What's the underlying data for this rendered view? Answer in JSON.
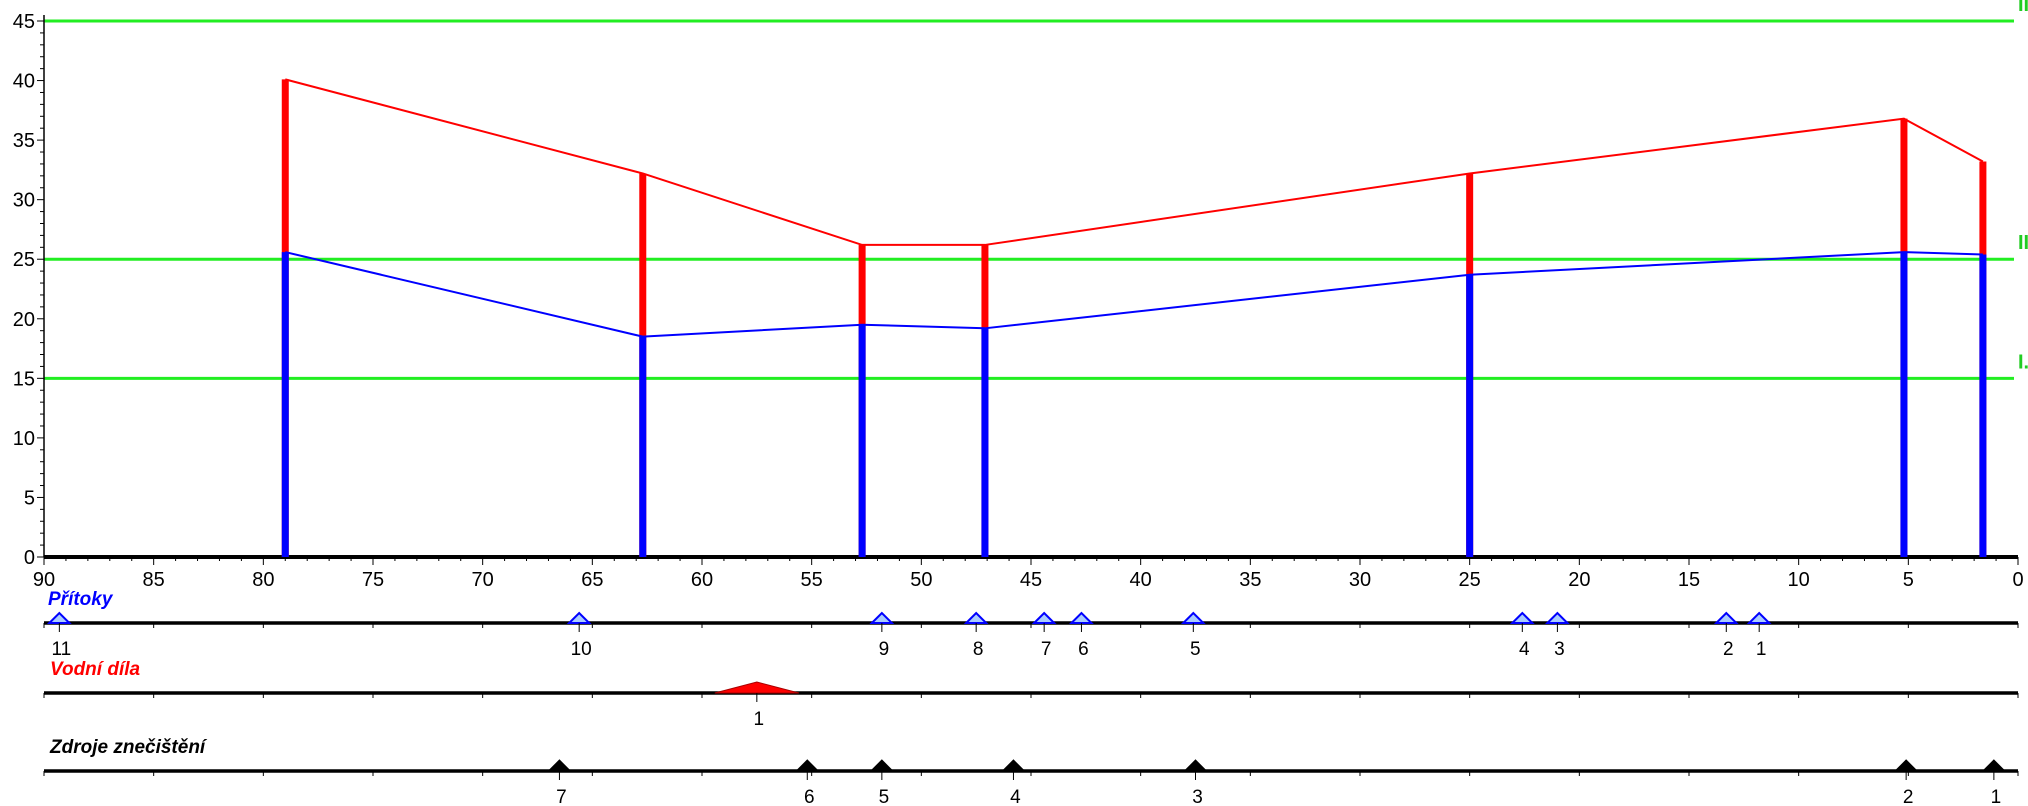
{
  "chart_data": {
    "type": "bar",
    "title": "",
    "xlabel": "",
    "ylabel": "",
    "xlim": [
      90,
      0
    ],
    "ylim": [
      0,
      45
    ],
    "x_ticks": [
      90,
      85,
      80,
      75,
      70,
      65,
      60,
      55,
      50,
      45,
      40,
      35,
      30,
      25,
      20,
      15,
      10,
      5,
      0
    ],
    "y_ticks": [
      0,
      5,
      10,
      15,
      20,
      25,
      30,
      35,
      40,
      45
    ],
    "class_lines": [
      {
        "label": "II",
        "y": 45,
        "color": "#22ee22"
      },
      {
        "label": "III",
        "y": 25,
        "color": "#22ee22"
      },
      {
        "label": "I.",
        "y": 15,
        "color": "#22ee22"
      }
    ],
    "x": [
      79,
      62.7,
      52.7,
      47.1,
      25,
      5.2,
      1.6
    ],
    "series": [
      {
        "color": "#ff0000",
        "values": [
          40.1,
          32.2,
          26.2,
          26.2,
          32.2,
          36.8,
          33.2
        ]
      },
      {
        "color": "#0000ff",
        "values": [
          25.6,
          18.5,
          19.5,
          19.2,
          23.7,
          25.6,
          25.4
        ]
      }
    ],
    "tracks": [
      {
        "title": "Přítoky",
        "color": "#0000ff",
        "markers": [
          {
            "label": "11",
            "km": 89.3
          },
          {
            "label": "10",
            "km": 65.6
          },
          {
            "label": "9",
            "km": 51.8
          },
          {
            "label": "8",
            "km": 47.5
          },
          {
            "label": "7",
            "km": 44.4
          },
          {
            "label": "6",
            "km": 42.7
          },
          {
            "label": "5",
            "km": 37.6
          },
          {
            "label": "4",
            "km": 22.6
          },
          {
            "label": "3",
            "km": 21.0
          },
          {
            "label": "2",
            "km": 13.3
          },
          {
            "label": "1",
            "km": 11.8
          }
        ]
      },
      {
        "title": "Vodní díla",
        "color": "#ff0000",
        "markers": [
          {
            "label": "1",
            "km": 57.5
          }
        ]
      },
      {
        "title": "Zdroje znečištění",
        "color": "#000000",
        "markers": [
          {
            "label": "7",
            "km": 66.5
          },
          {
            "label": "6",
            "km": 55.2
          },
          {
            "label": "5",
            "km": 51.8
          },
          {
            "label": "4",
            "km": 45.8
          },
          {
            "label": "3",
            "km": 37.5
          },
          {
            "label": "2",
            "km": 5.1
          },
          {
            "label": "1",
            "km": 1.1
          }
        ]
      }
    ]
  }
}
